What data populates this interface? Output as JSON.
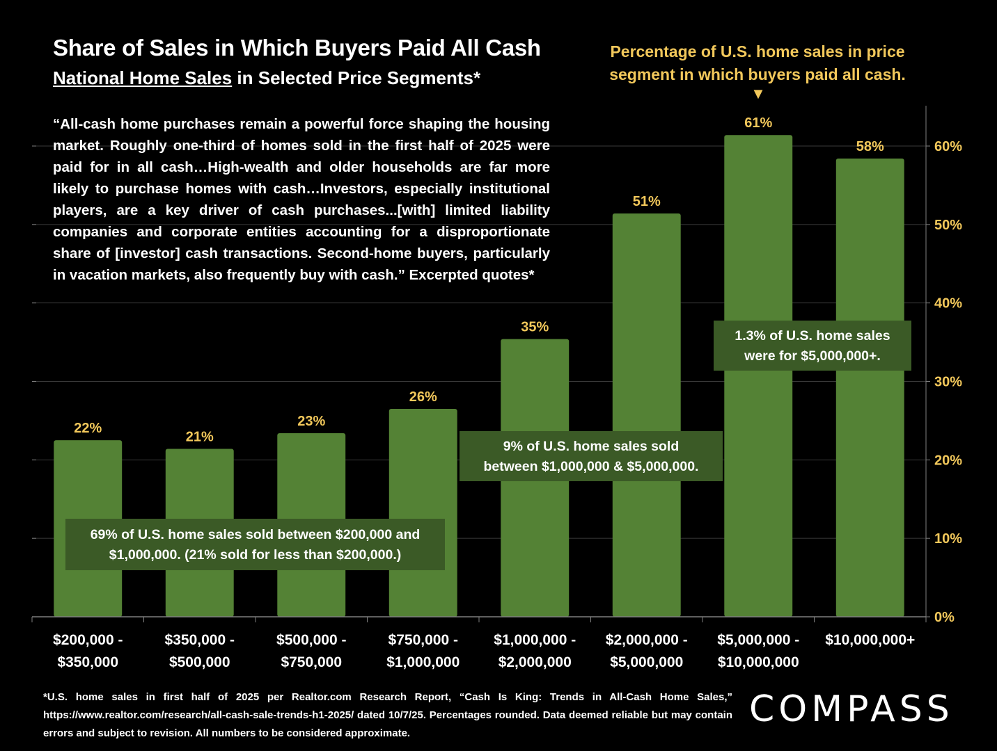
{
  "header": {
    "title": "Share of Sales in Which Buyers Paid All Cash",
    "subtitle_underlined": "National Home Sales",
    "subtitle_rest": " in Selected Price Segments*"
  },
  "callout": {
    "text": "Percentage of U.S. home sales in price segment in which buyers paid all cash.",
    "arrow": "▼"
  },
  "quote": "“All-cash home purchases remain a powerful force shaping the housing market. Roughly one-third of homes sold in the first half of 2025 were paid for in all cash…High-wealth and older households are far more likely to purchase homes with cash…Investors, especially institutional players, are a key driver of cash purchases...[with] limited liability companies and corporate entities accounting for a disproportionate share of [investor] cash transactions. Second-home buyers, particularly in vacation markets, also frequently buy with cash.” Excerpted quotes*",
  "annotations": {
    "low": [
      "69% of U.S. home sales sold between $200,000 and",
      "$1,000,000. (21% sold for less than $200,000.)"
    ],
    "mid": [
      "9% of U.S. home sales sold",
      "between $1,000,000 & $5,000,000."
    ],
    "high": [
      "1.3% of U.S. home sales",
      "were for  $5,000,000+."
    ]
  },
  "footnote": "*U.S. home sales in first half of 2025 per Realtor.com Research Report, “Cash Is King: Trends in All-Cash Home Sales,” https://www.realtor.com/research/all-cash-sale-trends-h1-2025/ dated 10/7/25. Percentages rounded. Data deemed reliable but may contain errors and subject to revision. All numbers to be considered approximate.",
  "logo": "COMPASS",
  "colors": {
    "bar": "#548235",
    "annotation_box": "#3b5a26",
    "highlight_text": "#f2c85b",
    "gridline": "#3a3a3a",
    "axis": "#7f7f7f"
  },
  "chart_data": {
    "type": "bar",
    "categories": [
      [
        "$200,000 -",
        "$350,000"
      ],
      [
        "$350,000 -",
        "$500,000"
      ],
      [
        "$500,000 -",
        "$750,000"
      ],
      [
        "$750,000 -",
        "$1,000,000"
      ],
      [
        "$1,000,000 -",
        "$2,000,000"
      ],
      [
        "$2,000,000 -",
        "$5,000,000"
      ],
      [
        "$5,000,000 -",
        "$10,000,000"
      ],
      [
        "$10,000,000+"
      ]
    ],
    "values": [
      22.5,
      21.4,
      23.4,
      26.5,
      35.4,
      51.4,
      61.4,
      58.4
    ],
    "data_labels": [
      "22%",
      "21%",
      "23%",
      "26%",
      "35%",
      "51%",
      "61%",
      "58%"
    ],
    "ylim": [
      0,
      65
    ],
    "yticks": [
      0,
      10,
      20,
      30,
      40,
      50,
      60
    ],
    "ytick_labels": [
      "0%",
      "10%",
      "20%",
      "30%",
      "40%",
      "50%",
      "60%"
    ],
    "y_axis_side": "right",
    "grid": true
  }
}
